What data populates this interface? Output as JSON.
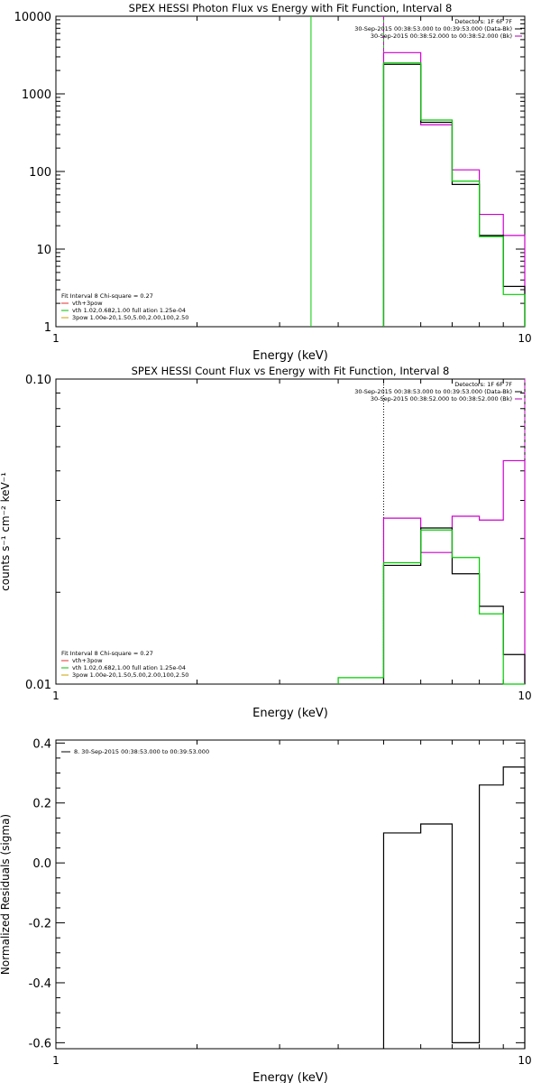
{
  "chart_data": [
    {
      "type": "line",
      "title": "SPEX HESSI Photon Flux vs Energy with Fit Function, Interval 8",
      "xlabel": "Energy (keV)",
      "ylabel": "",
      "xscale": "log",
      "yscale": "log",
      "xlim": [
        1,
        10
      ],
      "ylim": [
        1,
        10000
      ],
      "x_ticks": [
        "1",
        "10"
      ],
      "y_ticks": [
        {
          "v": 1,
          "label": "1"
        },
        {
          "v": 10,
          "label": "10"
        },
        {
          "v": 100,
          "label": "100"
        },
        {
          "v": 1000,
          "label": "1000"
        },
        {
          "v": 10000,
          "label": "10000"
        }
      ],
      "info_right": [
        "Detectors: 1F 6F 7F",
        "30-Sep-2015 00:38:53.000 to 00:39:53.000 (Data-Bk)",
        "30-Sep-2015 00:38:52.000 to 00:38:52.000 (Bk)"
      ],
      "info_right_colors": [
        "#000000",
        "#000000",
        "#b000b0"
      ],
      "legend_left": [
        "Fit Interval 8   Chi-square = 0.27",
        "vth+3pow",
        "vth 1.02,0.682,1.00  full ation 1.25e-04",
        "3pow 1.00e-20,1.50,5.00,2.00,100,2.50"
      ],
      "legend_left_colors": [
        "#000000",
        "#e03030",
        "#00c000",
        "#c8a000"
      ],
      "vlines": [
        {
          "x": 3.5,
          "color": "#00cc00",
          "style": "solid"
        },
        {
          "x": 5.0,
          "color": "#00cc00",
          "style": "solid"
        },
        {
          "x": 5.0,
          "color": "#cc00cc",
          "style": "dashed"
        }
      ],
      "series": [
        {
          "color": "#cc00cc",
          "edges": [
            5,
            6,
            7,
            8,
            9,
            10
          ],
          "values": [
            3400,
            400,
            105,
            28,
            15
          ]
        },
        {
          "color": "#000000",
          "edges": [
            5,
            6,
            7,
            8,
            9,
            10
          ],
          "values": [
            2400,
            430,
            68,
            15,
            3.3
          ]
        },
        {
          "color": "#00cc00",
          "edges": [
            5,
            6,
            7,
            8,
            9,
            10
          ],
          "values": [
            2500,
            460,
            75,
            14.5,
            2.6
          ]
        }
      ]
    },
    {
      "type": "line",
      "title": "SPEX HESSI Count Flux vs Energy with Fit Function, Interval 8",
      "xlabel": "Energy (keV)",
      "ylabel": "counts s⁻¹ cm⁻² keV⁻¹",
      "xscale": "log",
      "yscale": "log",
      "xlim": [
        1,
        10
      ],
      "ylim": [
        0.01,
        0.1
      ],
      "x_ticks": [
        "1",
        "10"
      ],
      "y_ticks": [
        {
          "v": 0.01,
          "label": "0.01"
        },
        {
          "v": 0.1,
          "label": "0.10"
        }
      ],
      "info_right": [
        "Detectors: 1F 6F 7F",
        "30-Sep-2015 00:38:53.000 to 00:39:53.000 (Data-Bk)",
        "30-Sep-2015 00:38:52.000 to 00:38:52.000 (Bk)"
      ],
      "info_right_colors": [
        "#000000",
        "#000000",
        "#b000b0"
      ],
      "legend_left": [
        "Fit Interval 8   Chi-square = 0.27",
        "vth+3pow",
        "vth 1.02,0.682,1.00  full ation 1.25e-04",
        "3pow 1.00e-20,1.50,5.00,2.00,100,2.50"
      ],
      "legend_left_colors": [
        "#000000",
        "#e03030",
        "#00c000",
        "#c8a000"
      ],
      "vlines": [
        {
          "x": 5.0,
          "color": "#000000",
          "style": "dotted"
        },
        {
          "x": 10.0,
          "color": "#cc00cc",
          "style": "dashed"
        }
      ],
      "series": [
        {
          "color": "#cc00cc",
          "edges": [
            5,
            6,
            7,
            8,
            9,
            10
          ],
          "values": [
            0.035,
            0.027,
            0.0355,
            0.0345,
            0.054
          ]
        },
        {
          "color": "#000000",
          "edges": [
            5,
            6,
            7,
            8,
            9,
            10
          ],
          "values": [
            0.0245,
            0.0325,
            0.023,
            0.018,
            0.0125
          ]
        },
        {
          "color": "#00cc00",
          "edges": [
            4,
            5,
            6,
            7,
            8,
            9,
            10
          ],
          "values": [
            0.0105,
            0.025,
            0.032,
            0.026,
            0.017,
            0.0095
          ]
        }
      ]
    },
    {
      "type": "line",
      "title": "",
      "xlabel": "Energy (keV)",
      "ylabel": "Normalized Residuals (sigma)",
      "xscale": "log",
      "yscale": "linear",
      "xlim": [
        1,
        10
      ],
      "ylim": [
        -0.62,
        0.41
      ],
      "x_ticks": [
        "1",
        "10"
      ],
      "y_ticks": [
        {
          "v": 0.4,
          "label": "0.4"
        },
        {
          "v": 0.2,
          "label": "0.2"
        },
        {
          "v": 0.0,
          "label": "0.0"
        },
        {
          "v": -0.2,
          "label": "-0.2"
        },
        {
          "v": -0.4,
          "label": "-0.4"
        },
        {
          "v": -0.6,
          "label": "-0.6"
        }
      ],
      "legend_left": [
        "8. 30-Sep-2015 00:38:53.000 to 00:39:53.000"
      ],
      "legend_left_colors": [
        "#000000"
      ],
      "series": [
        {
          "color": "#000000",
          "edges": [
            5,
            6,
            7,
            8,
            9,
            10
          ],
          "values": [
            0.1,
            0.13,
            -0.6,
            0.26,
            0.32
          ]
        }
      ]
    }
  ]
}
